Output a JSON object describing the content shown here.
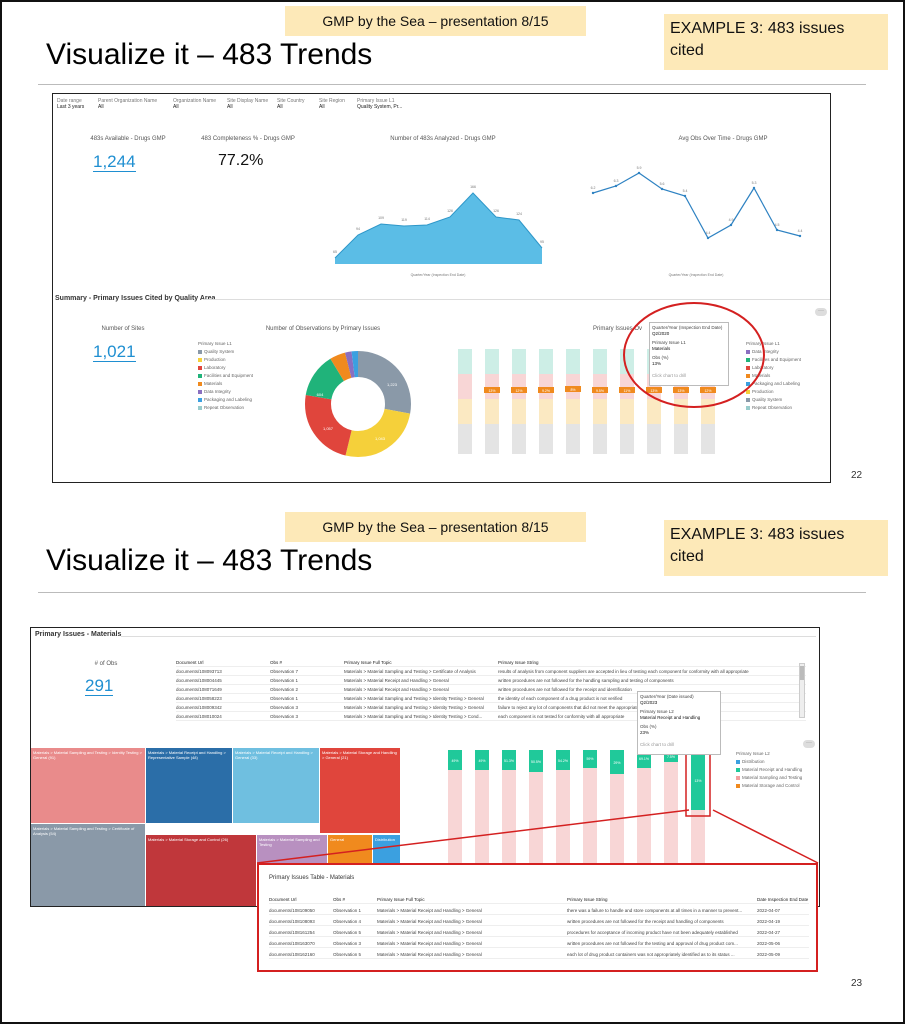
{
  "slide1": {
    "header": "GMP by the Sea – presentation 8/15",
    "example": "EXAMPLE 3: 483 issues cited",
    "title": "Visualize it – 483 Trends",
    "page_number": "22",
    "filters": [
      {
        "label": "Date range",
        "value": "Last 3 years"
      },
      {
        "label": "Parent Organization Name",
        "value": "All"
      },
      {
        "label": "Organization Name",
        "value": "All"
      },
      {
        "label": "Site Display Name",
        "value": "All"
      },
      {
        "label": "Site Country",
        "value": "All"
      },
      {
        "label": "Site Region",
        "value": "All"
      },
      {
        "label": "Primary Issue L1",
        "value": "Quality System, Pr..."
      }
    ],
    "kpis": [
      {
        "title": "483s Available - Drugs GMP",
        "value": "1,244"
      },
      {
        "title": "483 Completeness % - Drugs GMP",
        "value": "77.2%"
      }
    ],
    "area_chart": {
      "title": "Number of 483s Analyzed - Drugs GMP",
      "xlabel": "Quarter/Year (Inspection End Date)",
      "labels": [
        "65",
        "94",
        "109",
        "119",
        "114",
        "126",
        "166",
        "126",
        "124",
        "95"
      ]
    },
    "line_chart": {
      "title": "Avg Obs Over Time - Drugs GMP",
      "xlabel": "Quarter/Year (Inspection End Date)",
      "labels": [
        "6.2",
        "6.3",
        "5.9",
        "5.6",
        "5.4",
        "4.4",
        "4.9",
        "5.3",
        "4.5",
        "4.4"
      ]
    },
    "section_title": "Summary - Primary Issues Cited by Quality Area",
    "sites": {
      "title": "Number of Sites",
      "value": "1,021"
    },
    "donut": {
      "title": "Number of Observations by Primary Issues",
      "legend_title": "Primary Issue L1",
      "legend": [
        "Quality System",
        "Production",
        "Laboratory",
        "Facilities and Equipment",
        "Materials",
        "Data Integrity",
        "Packaging and Labeling",
        "Repeat Observation"
      ],
      "labels": [
        "1,223",
        "1,043",
        "1,057",
        "604"
      ]
    },
    "stacked": {
      "title": "Primary Issues Ov",
      "legend_title": "Primary Issue L1",
      "legend": [
        "Data Integrity",
        "Facilities and Equipment",
        "Laboratory",
        "Materials",
        "Packaging and Labeling",
        "Production",
        "Quality System",
        "Repeat Observation"
      ],
      "labels": [
        "13%",
        "12%",
        "9.2%",
        "8%",
        "9.5%",
        "11%",
        "13%",
        "13%",
        "12%"
      ]
    },
    "tooltip": {
      "l1": "Quarter/Year (Inspection End Date)",
      "v1": "Q2/2020",
      "l2": "Primary Issue L1",
      "v2": "Materials",
      "l3": "Obs (%)",
      "v3": "13%",
      "link": "Click chart to drill"
    }
  },
  "slide2": {
    "header": "GMP by the Sea – presentation 8/15",
    "example": "EXAMPLE 3: 483 issues cited",
    "title": "Visualize it – 483 Trends",
    "page_number": "23",
    "section_title": "Primary Issues - Materials",
    "obs": {
      "title": "# of Obs",
      "value": "291"
    },
    "table": {
      "headers": [
        "Document Url",
        "Obs #",
        "Primary Issue Full Topic",
        "Primary Issue String"
      ],
      "rows": [
        [
          "documents/108093713",
          "Observation 7",
          "Materials > Material Sampling and Testing > Certificate of Analysis",
          "results of analysis from component suppliers are accepted in lieu of testing each component for conformity with all appropriate"
        ],
        [
          "documents/108004445",
          "Observation 1",
          "Materials > Material Receipt and Handling > General",
          "written procedures are not followed for the handling sampling and testing of components"
        ],
        [
          "documents/108071649",
          "Observation 2",
          "Materials > Material Receipt and Handling > General",
          "written procedures are not followed for the receipt and identification"
        ],
        [
          "documents/108058223",
          "Observation 1",
          "Materials > Material Sampling and Testing > Identity Testing > General",
          "the identity of each component of a drug product is not verified"
        ],
        [
          "documents/108009342",
          "Observation 3",
          "Materials > Material Sampling and Testing > Identity Testing > General",
          "failure to reject any lot of components that did not meet the appropriate"
        ],
        [
          "documents/108010024",
          "Observation 3",
          "Materials > Material Sampling and Testing > Identity Testing > Cond...",
          "each component is not tested for conformity with all appropriate"
        ]
      ]
    },
    "treemap": [
      {
        "label": "Materials > Material Sampling and Testing > Identity Testing > General (91)",
        "color": "#e98b8b"
      },
      {
        "label": "Materials > Material Receipt and Handling > Representative Sample (48)",
        "color": "#2b6ea8"
      },
      {
        "label": "Materials > Material Receipt and Handling > General (33)",
        "color": "#6fbfe0"
      },
      {
        "label": "Materials > Material Storage and Handling > General (21)",
        "color": "#e0453c"
      },
      {
        "label": "Materials > Material Sampling and Testing > Certificate of Analysis (54)",
        "color": "#8a99a8"
      },
      {
        "label": "Materials > Material Storage and Control (26)",
        "color": "#c0373b"
      },
      {
        "label": "Materials > Material Sampling and Testing",
        "color": "#b890c0"
      },
      {
        "label": "General",
        "color": "#f08a1e"
      },
      {
        "label": "Distribution",
        "color": "#3ba0e0"
      }
    ],
    "bars": {
      "labels": [
        "49%",
        "49%",
        "51.3%",
        "50.5%",
        "54.2%",
        "59%",
        "29%",
        "69.1%",
        "7.5%",
        "13%"
      ],
      "legend_title": "Primary Issue L2",
      "legend": [
        "Distribution",
        "Material Receipt and Handling",
        "Material Sampling and Testing",
        "Material Storage and Control"
      ]
    },
    "tooltip": {
      "l1": "Quarter/Year (Date issued)",
      "v1": "Q2/2023",
      "l2": "Primary Issue L2",
      "v2": "Material Receipt and Handling",
      "l3": "Obs (%)",
      "v3": "23%",
      "link": "Click chart to drill"
    },
    "zoom": {
      "title": "Primary Issues Table - Materials",
      "headers": [
        "Document Url",
        "Obs #",
        "Primary Issue Full Topic",
        "Primary Issue String",
        "Date Inspection End Date"
      ],
      "rows": [
        [
          "documents/108109050",
          "Observation 1",
          "Materials > Material Receipt and Handling > General",
          "there was a failure to handle and store components at all times in a manner to prevent...",
          "2022-04-07"
        ],
        [
          "documents/108108093",
          "Observation 4",
          "Materials > Material Receipt and Handling > General",
          "written procedures are not followed for the receipt and handling of components",
          "2022-04-19"
        ],
        [
          "documents/108161254",
          "Observation 5",
          "Materials > Material Receipt and Handling > General",
          "procedures for acceptance of incoming product have not been adequately established",
          "2022-04-27"
        ],
        [
          "documents/108163070",
          "Observation 3",
          "Materials > Material Receipt and Handling > General",
          "written procedures are not followed for the testing and approval of drug product com...",
          "2022-05-06"
        ],
        [
          "documents/108162160",
          "Observation 5",
          "Materials > Material Receipt and Handling > General",
          "each lot of drug product containers was not appropriately identified as to its status ...",
          "2022-05-09"
        ]
      ]
    }
  }
}
